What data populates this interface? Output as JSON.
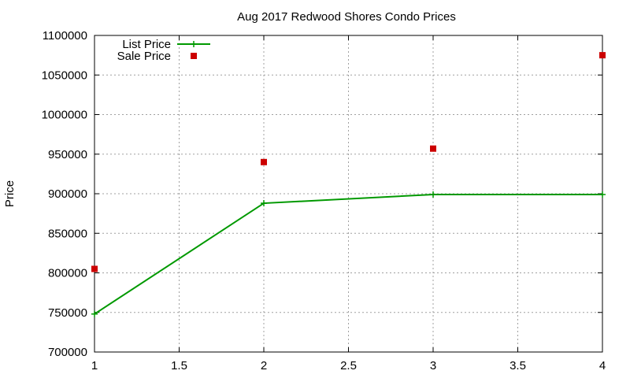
{
  "chart_data": {
    "type": "line",
    "title": "Aug 2017 Redwood Shores Condo Prices",
    "xlabel": "",
    "ylabel": "Price",
    "xlim": [
      1,
      4
    ],
    "ylim": [
      700000,
      1100000
    ],
    "x_ticks": [
      1,
      1.5,
      2,
      2.5,
      3,
      3.5,
      4
    ],
    "x_tick_labels": [
      "1",
      "1.5",
      "2",
      "2.5",
      "3",
      "3.5",
      "4"
    ],
    "y_ticks": [
      700000,
      750000,
      800000,
      850000,
      900000,
      950000,
      1000000,
      1050000,
      1100000
    ],
    "y_tick_labels": [
      "700000",
      "750000",
      "800000",
      "850000",
      "900000",
      "950000",
      "1000000",
      "1050000",
      "1100000"
    ],
    "grid": true,
    "legend_position": "top-left",
    "series": [
      {
        "name": "List Price",
        "style": "line-with-plus-markers",
        "color": "#009900",
        "x": [
          1,
          2,
          3,
          4
        ],
        "values": [
          748000,
          888000,
          899000,
          899000
        ]
      },
      {
        "name": "Sale Price",
        "style": "square-markers",
        "color": "#cc0000",
        "x": [
          1,
          2,
          3,
          4
        ],
        "values": [
          805000,
          940000,
          957000,
          1075000
        ]
      }
    ]
  }
}
